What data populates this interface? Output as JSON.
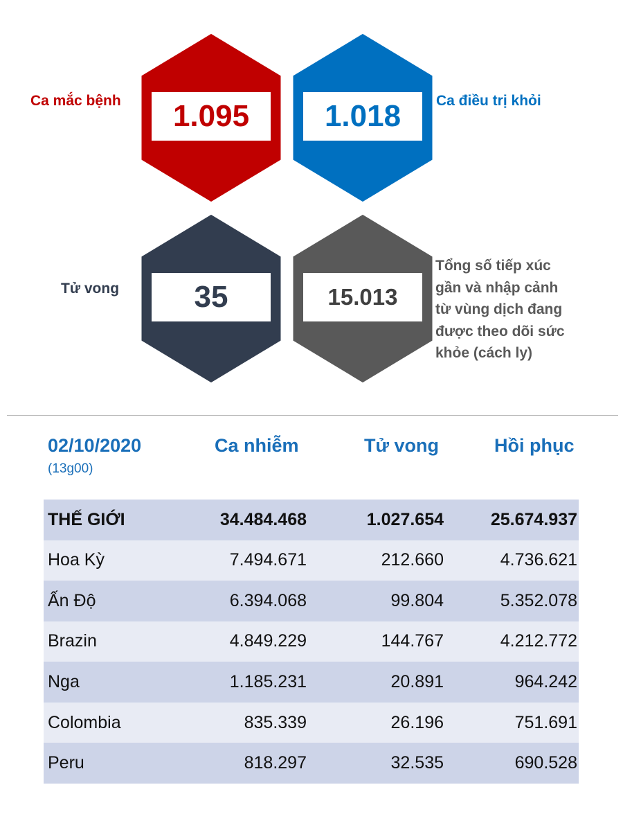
{
  "stats": {
    "cases": {
      "label": "Ca mắc bệnh",
      "value": "1.095",
      "color": "#c00000"
    },
    "recovered": {
      "label": "Ca điều trị khỏi",
      "value": "1.018",
      "color": "#0070c0"
    },
    "deaths": {
      "label": "Tử vong",
      "value": "35",
      "color": "#323d4f"
    },
    "monitored": {
      "label": "Tổng số tiếp xúc gần và nhập cảnh từ vùng dịch đang được theo dõi sức khỏe (cách ly)",
      "value": "15.013",
      "color": "#595959"
    }
  },
  "table": {
    "date": "02/10/2020",
    "time": "(13g00)",
    "columns": [
      "Ca nhiễm",
      "Tử vong",
      "Hồi phục"
    ],
    "rows": [
      {
        "country": "THẾ GIỚI",
        "cases": "34.484.468",
        "deaths": "1.027.654",
        "recovered": "25.674.937"
      },
      {
        "country": "Hoa Kỳ",
        "cases": "7.494.671",
        "deaths": "212.660",
        "recovered": "4.736.621"
      },
      {
        "country": "Ấn Độ",
        "cases": "6.394.068",
        "deaths": "99.804",
        "recovered": "5.352.078"
      },
      {
        "country": "Brazin",
        "cases": "4.849.229",
        "deaths": "144.767",
        "recovered": "4.212.772"
      },
      {
        "country": "Nga",
        "cases": "1.185.231",
        "deaths": "20.891",
        "recovered": "964.242"
      },
      {
        "country": "Colombia",
        "cases": "835.339",
        "deaths": "26.196",
        "recovered": "751.691"
      },
      {
        "country": "Peru",
        "cases": "818.297",
        "deaths": "32.535",
        "recovered": "690.528"
      }
    ]
  }
}
